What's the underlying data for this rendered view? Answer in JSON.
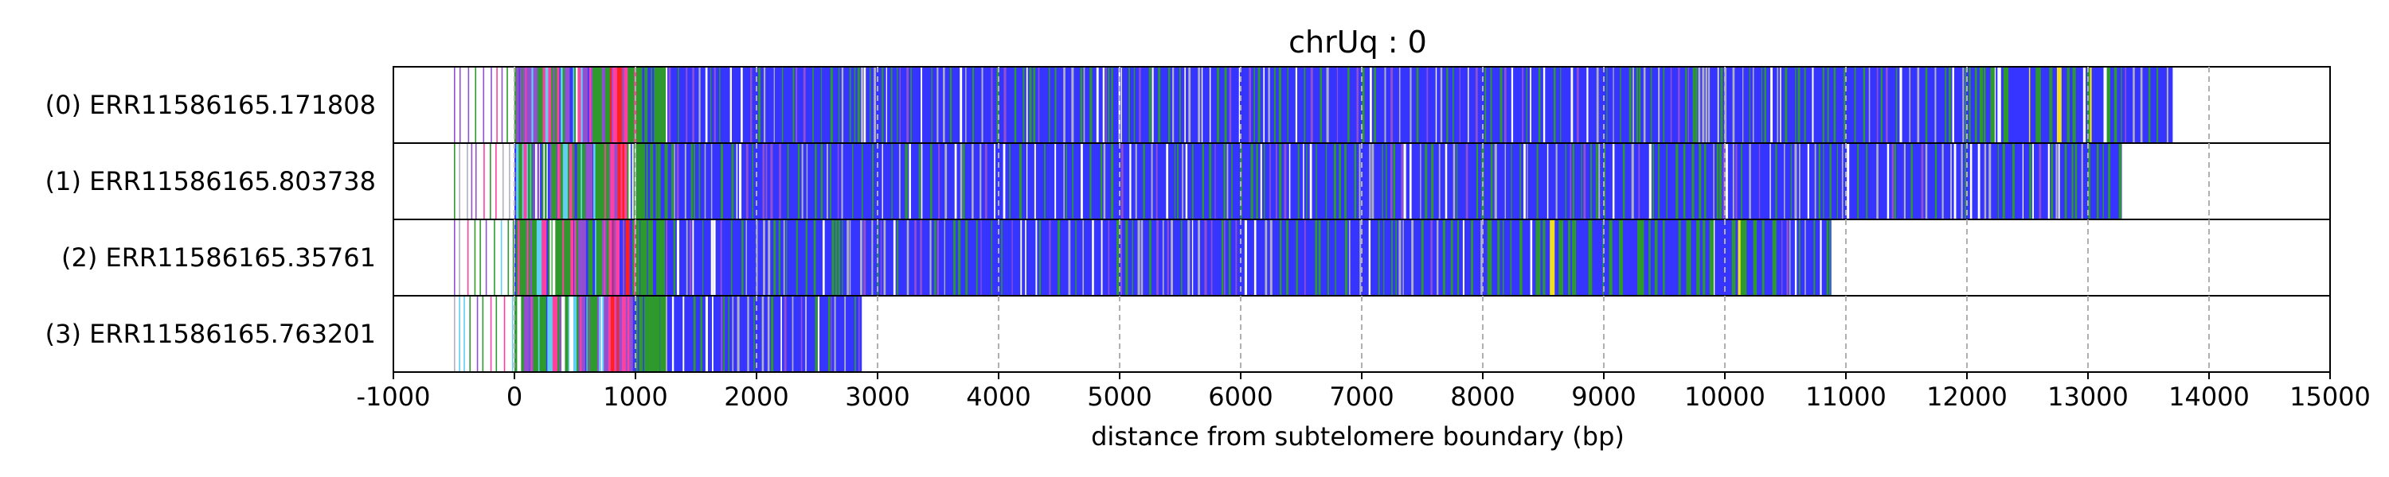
{
  "chart_data": {
    "type": "track-strip",
    "title": "chrUq : 0",
    "xlabel": "distance from subtelomere boundary (bp)",
    "xlim": [
      -1000,
      15000
    ],
    "x_ticks": [
      -1000,
      0,
      1000,
      2000,
      3000,
      4000,
      5000,
      6000,
      7000,
      8000,
      9000,
      10000,
      11000,
      12000,
      13000,
      14000,
      15000
    ],
    "x_tick_labels": [
      "-1000",
      "0",
      "1000",
      "2000",
      "3000",
      "4000",
      "5000",
      "6000",
      "7000",
      "8000",
      "9000",
      "10000",
      "11000",
      "12000",
      "13000",
      "14000",
      "15000"
    ],
    "grid": "vertical dashed",
    "colors": {
      "blue": "#3535ff",
      "green": "#2e9a2e",
      "pink": "#ff40a0",
      "red": "#ff2020",
      "purple": "#9050d0",
      "cyan": "#60d0f0",
      "white": "#ffffff",
      "gray": "#b0b0c0",
      "yellow": "#f0e020"
    },
    "reads": [
      {
        "label": "(0) ERR11586165.171808",
        "start": -500,
        "end": 13700
      },
      {
        "label": "(1) ERR11586165.803738",
        "start": -500,
        "end": 13280
      },
      {
        "label": "(2) ERR11586165.35761",
        "start": -500,
        "end": 10880
      },
      {
        "label": "(3) ERR11586165.763201",
        "start": -500,
        "end": 2870
      }
    ]
  }
}
